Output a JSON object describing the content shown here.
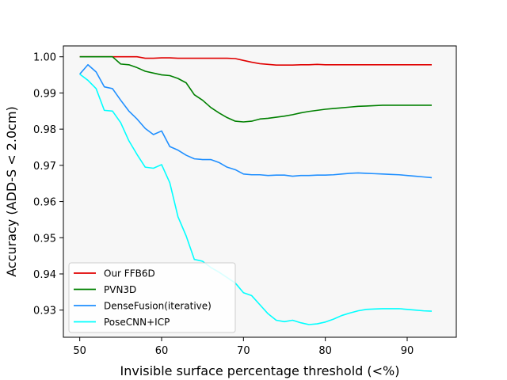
{
  "chart_data": {
    "type": "line",
    "xlabel": "Invisible surface percentage threshold (<%)",
    "ylabel": "Accuracy (ADD-S < 2.0cm)",
    "xlim": [
      48,
      96
    ],
    "ylim": [
      0.9225,
      1.003
    ],
    "xticks": [
      50,
      60,
      70,
      80,
      90
    ],
    "yticks": [
      0.93,
      0.94,
      0.95,
      0.96,
      0.97,
      0.98,
      0.99,
      1.0
    ],
    "ytick_labels": [
      "0.93",
      "0.94",
      "0.95",
      "0.96",
      "0.97",
      "0.98",
      "0.99",
      "1.00"
    ],
    "plot_background": "#f7f7f7",
    "grid": false,
    "legend_position": "lower-left",
    "x": [
      50,
      51,
      52,
      53,
      54,
      55,
      56,
      57,
      58,
      59,
      60,
      61,
      62,
      63,
      64,
      65,
      66,
      67,
      68,
      69,
      70,
      71,
      72,
      73,
      74,
      75,
      76,
      77,
      78,
      79,
      80,
      81,
      82,
      83,
      84,
      85,
      86,
      87,
      88,
      89,
      90,
      91,
      92,
      93
    ],
    "series": [
      {
        "name": "Our FFB6D",
        "color": "#e00000",
        "values": [
          1.0,
          1.0,
          1.0,
          1.0,
          1.0,
          1.0,
          1.0,
          1.0,
          0.9996,
          0.9996,
          0.9997,
          0.9997,
          0.9996,
          0.9996,
          0.9996,
          0.9996,
          0.9996,
          0.9996,
          0.9996,
          0.9995,
          0.999,
          0.9985,
          0.9981,
          0.9979,
          0.9977,
          0.9977,
          0.9977,
          0.9978,
          0.9978,
          0.9979,
          0.9978,
          0.9978,
          0.9978,
          0.9978,
          0.9978,
          0.9978,
          0.9978,
          0.9978,
          0.9978,
          0.9978,
          0.9978,
          0.9978,
          0.9978,
          0.9978
        ]
      },
      {
        "name": "PVN3D",
        "color": "#008000",
        "values": [
          1.0,
          1.0,
          1.0,
          1.0,
          1.0,
          0.998,
          0.9978,
          0.997,
          0.996,
          0.9955,
          0.995,
          0.9948,
          0.994,
          0.9928,
          0.9895,
          0.988,
          0.986,
          0.9845,
          0.9832,
          0.9822,
          0.982,
          0.9822,
          0.9828,
          0.983,
          0.9833,
          0.9836,
          0.984,
          0.9845,
          0.9849,
          0.9852,
          0.9855,
          0.9857,
          0.9859,
          0.9861,
          0.9863,
          0.9864,
          0.9865,
          0.9866,
          0.9866,
          0.9866,
          0.9866,
          0.9866,
          0.9866,
          0.9866
        ]
      },
      {
        "name": "DenseFusion(iterative)",
        "color": "#1f8fff",
        "values": [
          0.9952,
          0.9978,
          0.9958,
          0.9917,
          0.9912,
          0.988,
          0.985,
          0.9828,
          0.9802,
          0.9785,
          0.9795,
          0.9752,
          0.9742,
          0.9728,
          0.9718,
          0.9716,
          0.9716,
          0.9708,
          0.9695,
          0.9688,
          0.9676,
          0.9674,
          0.9674,
          0.9672,
          0.9673,
          0.9673,
          0.967,
          0.9672,
          0.9672,
          0.9673,
          0.9673,
          0.9674,
          0.9676,
          0.9678,
          0.9679,
          0.9678,
          0.9677,
          0.9676,
          0.9675,
          0.9674,
          0.9672,
          0.967,
          0.9668,
          0.9666
        ]
      },
      {
        "name": "PoseCNN+ICP",
        "color": "#00ffff",
        "values": [
          0.9952,
          0.9935,
          0.9912,
          0.9852,
          0.985,
          0.9818,
          0.9768,
          0.973,
          0.9695,
          0.9692,
          0.9702,
          0.9652,
          0.9558,
          0.9505,
          0.944,
          0.9435,
          0.9418,
          0.9405,
          0.939,
          0.9375,
          0.9348,
          0.934,
          0.9315,
          0.929,
          0.9272,
          0.9268,
          0.9272,
          0.9265,
          0.926,
          0.9262,
          0.9267,
          0.9275,
          0.9285,
          0.9292,
          0.9298,
          0.9302,
          0.9303,
          0.9304,
          0.9304,
          0.9304,
          0.9302,
          0.93,
          0.9298,
          0.9297
        ]
      }
    ]
  }
}
